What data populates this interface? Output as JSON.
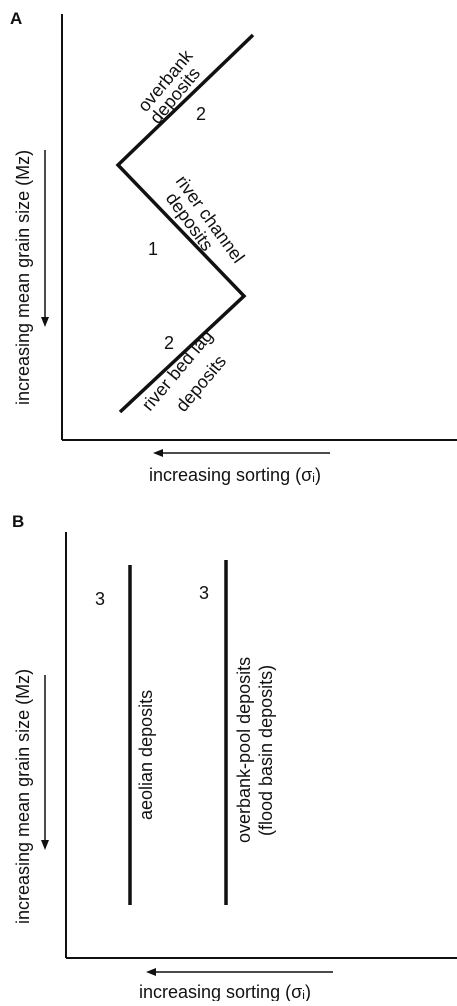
{
  "panel_a": {
    "label": "A",
    "y_axis_label": "increasing mean grain size (Mz)",
    "x_axis_label": "increasing sorting  (σᵢ)",
    "annotations": {
      "overbank_line1": "overbank",
      "overbank_line2": "deposits",
      "channel_line1": "river channel",
      "channel_line2": "deposits",
      "lag_line1": "river bed lag",
      "lag_line2": "deposits",
      "num_overbank": "2",
      "num_channel": "1",
      "num_lag": "2"
    }
  },
  "panel_b": {
    "label": "B",
    "y_axis_label": "increasing mean grain size (Mz)",
    "x_axis_label": "increasing sorting (σᵢ)",
    "annotations": {
      "aeolian": "aeolian deposits",
      "overbank_pool_line1": "overbank-pool deposits",
      "overbank_pool_line2": "(flood basin deposits)",
      "num_aeolian": "3",
      "num_overbank_pool": "3"
    }
  },
  "colors": {
    "line": "#111111",
    "background": "#ffffff"
  }
}
